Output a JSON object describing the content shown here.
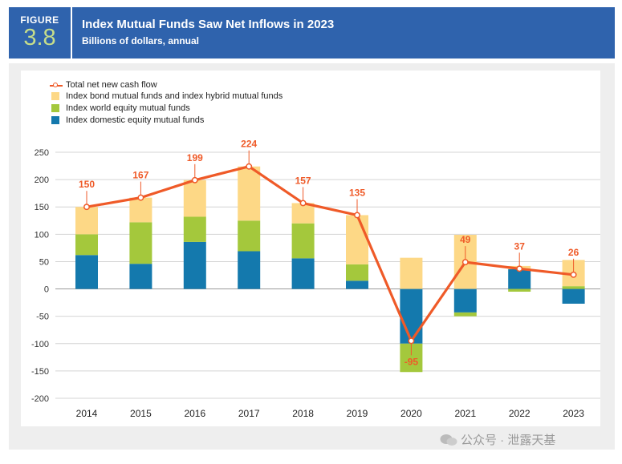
{
  "header": {
    "figure_label": "FIGURE",
    "figure_number": "3.8",
    "title": "Index Mutual Funds Saw Net Inflows in 2023",
    "subtitle": "Billions of dollars, annual"
  },
  "legend": [
    {
      "label": "Total net new cash flow",
      "kind": "line",
      "color": "#ef5a28"
    },
    {
      "label": "Index bond mutual funds and index hybrid mutual funds",
      "kind": "box",
      "color": "#fdd886"
    },
    {
      "label": "Index world equity mutual funds",
      "kind": "box",
      "color": "#a4c83c"
    },
    {
      "label": "Index domestic equity mutual funds",
      "kind": "box",
      "color": "#1479ad"
    }
  ],
  "watermark": "公众号 · 泄露天基",
  "chart_data": {
    "type": "bar",
    "stacked": true,
    "title": "Index Mutual Funds Saw Net Inflows in 2023",
    "subtitle": "Billions of dollars, annual",
    "categories": [
      "2014",
      "2015",
      "2016",
      "2017",
      "2018",
      "2019",
      "2020",
      "2021",
      "2022",
      "2023"
    ],
    "yticks": [
      250,
      200,
      150,
      100,
      50,
      0,
      -50,
      -100,
      -150,
      -200
    ],
    "ylim": [
      -200,
      250
    ],
    "grid": true,
    "series": [
      {
        "name": "Index domestic equity mutual funds",
        "color": "#1479ad",
        "values": [
          62,
          46,
          86,
          69,
          56,
          15,
          -100,
          -43,
          36,
          -27
        ]
      },
      {
        "name": "Index world equity mutual funds",
        "color": "#a4c83c",
        "values": [
          38,
          76,
          46,
          56,
          64,
          30,
          -52,
          -7,
          -5,
          5
        ]
      },
      {
        "name": "Index bond mutual funds and index hybrid mutual funds",
        "color": "#fdd886",
        "values": [
          50,
          45,
          67,
          99,
          37,
          90,
          57,
          99,
          6,
          48
        ]
      }
    ],
    "line": {
      "name": "Total net new cash flow",
      "color": "#ef5a28",
      "values": [
        150,
        167,
        199,
        224,
        157,
        135,
        -95,
        49,
        37,
        26
      ]
    }
  }
}
